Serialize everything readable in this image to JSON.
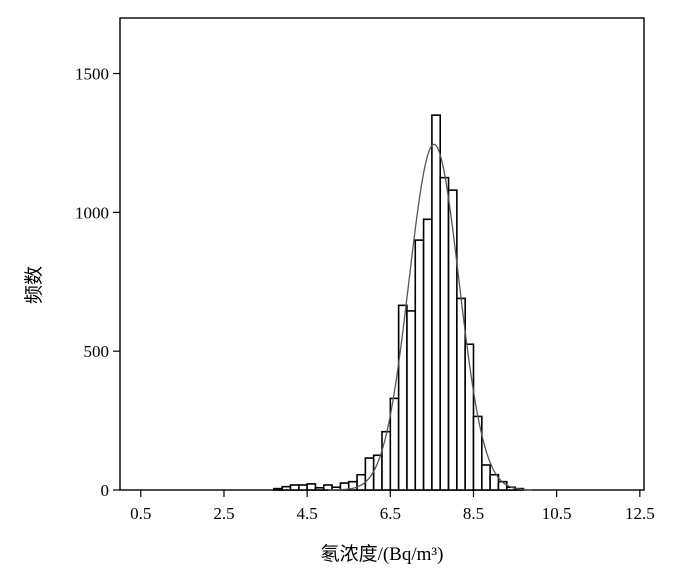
{
  "chart_data": {
    "type": "bar",
    "xlabel": "氡浓度/(Bq/m³)",
    "ylabel": "频数",
    "xlim": [
      0.0,
      12.6
    ],
    "ylim": [
      0,
      1700
    ],
    "xticks": [
      0.5,
      2.5,
      4.5,
      6.5,
      8.5,
      10.5,
      12.5
    ],
    "xtick_labels": [
      "0.5",
      "2.5",
      "4.5",
      "6.5",
      "8.5",
      "10.5",
      "12.5"
    ],
    "yticks": [
      0,
      500,
      1000,
      1500
    ],
    "ytick_labels": [
      "0",
      "500",
      "1000",
      "1500"
    ],
    "bin_width": 0.2,
    "bins": [
      {
        "x0": 3.7,
        "value": 5
      },
      {
        "x0": 3.9,
        "value": 12
      },
      {
        "x0": 4.1,
        "value": 18
      },
      {
        "x0": 4.3,
        "value": 18
      },
      {
        "x0": 4.5,
        "value": 22
      },
      {
        "x0": 4.7,
        "value": 8
      },
      {
        "x0": 4.9,
        "value": 18
      },
      {
        "x0": 5.1,
        "value": 10
      },
      {
        "x0": 5.3,
        "value": 25
      },
      {
        "x0": 5.5,
        "value": 30
      },
      {
        "x0": 5.7,
        "value": 55
      },
      {
        "x0": 5.9,
        "value": 115
      },
      {
        "x0": 6.1,
        "value": 125
      },
      {
        "x0": 6.3,
        "value": 210
      },
      {
        "x0": 6.5,
        "value": 330
      },
      {
        "x0": 6.7,
        "value": 665
      },
      {
        "x0": 6.9,
        "value": 645
      },
      {
        "x0": 7.1,
        "value": 900
      },
      {
        "x0": 7.3,
        "value": 975
      },
      {
        "x0": 7.5,
        "value": 1350
      },
      {
        "x0": 7.7,
        "value": 1125
      },
      {
        "x0": 7.9,
        "value": 1080
      },
      {
        "x0": 8.1,
        "value": 690
      },
      {
        "x0": 8.3,
        "value": 525
      },
      {
        "x0": 8.5,
        "value": 265
      },
      {
        "x0": 8.7,
        "value": 90
      },
      {
        "x0": 8.9,
        "value": 55
      },
      {
        "x0": 9.1,
        "value": 30
      },
      {
        "x0": 9.3,
        "value": 10
      },
      {
        "x0": 9.5,
        "value": 5
      }
    ],
    "normal_fit": {
      "mean": 7.55,
      "sd": 0.6,
      "peak": 1245
    }
  }
}
